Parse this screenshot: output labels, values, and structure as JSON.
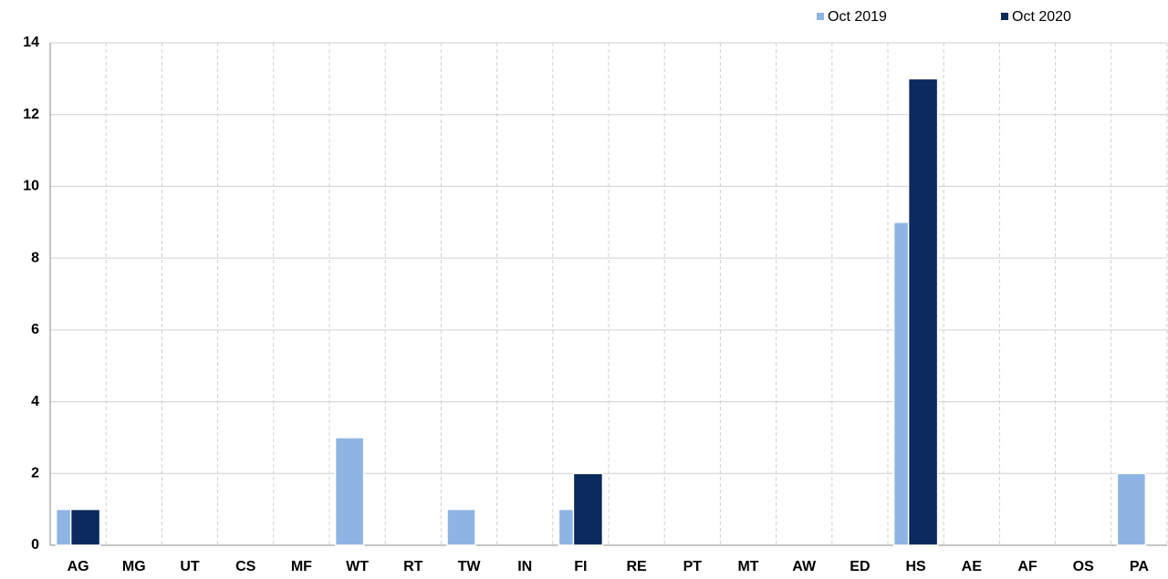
{
  "chart_data": {
    "type": "bar",
    "categories": [
      "AG",
      "MG",
      "UT",
      "CS",
      "MF",
      "WT",
      "RT",
      "TW",
      "IN",
      "FI",
      "RE",
      "PT",
      "MT",
      "AW",
      "ED",
      "HS",
      "AE",
      "AF",
      "OS",
      "PA"
    ],
    "series": [
      {
        "name": "Oct 2019",
        "color": "#8eb4e3",
        "values": [
          1,
          0,
          0,
          0,
          0,
          3,
          0,
          1,
          0,
          1,
          0,
          0,
          0,
          0,
          0,
          9,
          0,
          0,
          0,
          2
        ]
      },
      {
        "name": "Oct 2020",
        "color": "#0b2a5e",
        "values": [
          1,
          0,
          0,
          0,
          0,
          0,
          0,
          0,
          0,
          2,
          0,
          0,
          0,
          0,
          0,
          13,
          0,
          0,
          0,
          0
        ]
      }
    ],
    "ylim": [
      0,
      14
    ],
    "yticks": [
      0,
      2,
      4,
      6,
      8,
      10,
      12,
      14
    ],
    "grid": true,
    "legend": "top-right"
  }
}
